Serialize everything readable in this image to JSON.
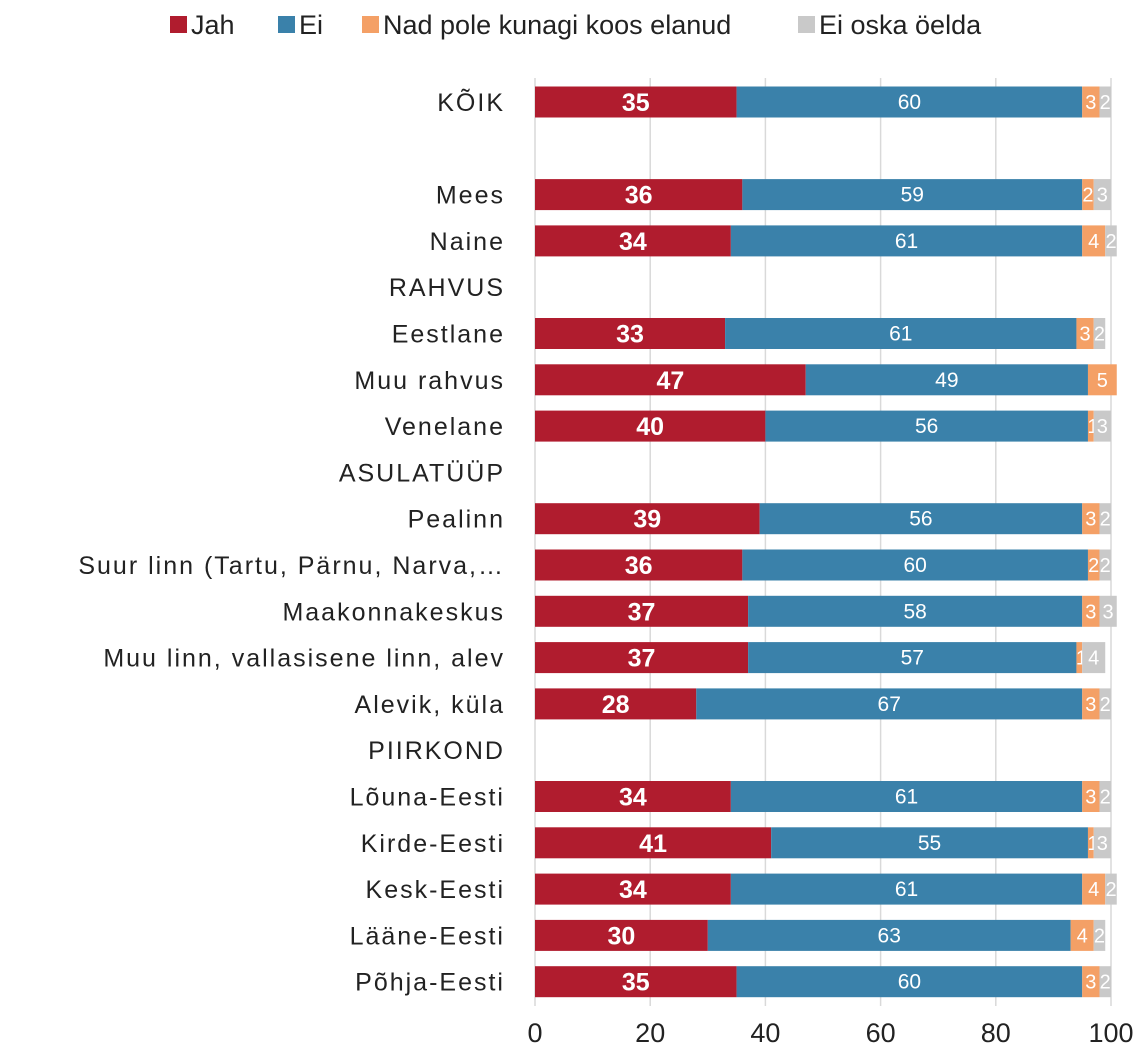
{
  "chart_data": {
    "type": "bar",
    "orientation": "horizontal",
    "stacked": true,
    "xlim": [
      0,
      100
    ],
    "x_ticks": [
      "0",
      "20",
      "40",
      "60",
      "80",
      "100"
    ],
    "grid": "vertical",
    "legend_position": "top",
    "series": [
      {
        "name": "Jah",
        "color": "#B01C2E"
      },
      {
        "name": "Ei",
        "color": "#3A81AA"
      },
      {
        "name": "Nad pole kunagi koos elanud",
        "color": "#F4A066"
      },
      {
        "name": "Ei oska öelda",
        "color": "#C9C9C9"
      }
    ],
    "rows": [
      {
        "label": "KÕIK",
        "values": [
          35,
          60,
          3,
          2
        ]
      },
      {
        "label": "",
        "values": null
      },
      {
        "label": "Mees",
        "values": [
          36,
          59,
          2,
          3
        ]
      },
      {
        "label": "Naine",
        "values": [
          34,
          61,
          4,
          2
        ]
      },
      {
        "label": "RAHVUS",
        "values": null
      },
      {
        "label": "Eestlane",
        "values": [
          33,
          61,
          3,
          2
        ]
      },
      {
        "label": "Muu rahvus",
        "values": [
          47,
          49,
          5,
          0
        ]
      },
      {
        "label": "Venelane",
        "values": [
          40,
          56,
          1,
          3
        ]
      },
      {
        "label": "ASULATÜÜP",
        "values": null
      },
      {
        "label": "Pealinn",
        "values": [
          39,
          56,
          3,
          2
        ]
      },
      {
        "label": "Suur linn (Tartu, Pärnu, Narva,…",
        "values": [
          36,
          60,
          2,
          2
        ]
      },
      {
        "label": "Maakonnakeskus",
        "values": [
          37,
          58,
          3,
          3
        ]
      },
      {
        "label": "Muu linn, vallasisene linn, alev",
        "values": [
          37,
          57,
          1,
          4
        ]
      },
      {
        "label": "Alevik, küla",
        "values": [
          28,
          67,
          3,
          2
        ]
      },
      {
        "label": "PIIRKOND",
        "values": null
      },
      {
        "label": "Lõuna-Eesti",
        "values": [
          34,
          61,
          3,
          2
        ]
      },
      {
        "label": "Kirde-Eesti",
        "values": [
          41,
          55,
          1,
          3
        ]
      },
      {
        "label": "Kesk-Eesti",
        "values": [
          34,
          61,
          4,
          2
        ]
      },
      {
        "label": "Lääne-Eesti",
        "values": [
          30,
          63,
          4,
          2
        ]
      },
      {
        "label": "Põhja-Eesti",
        "values": [
          35,
          60,
          3,
          2
        ]
      }
    ]
  }
}
